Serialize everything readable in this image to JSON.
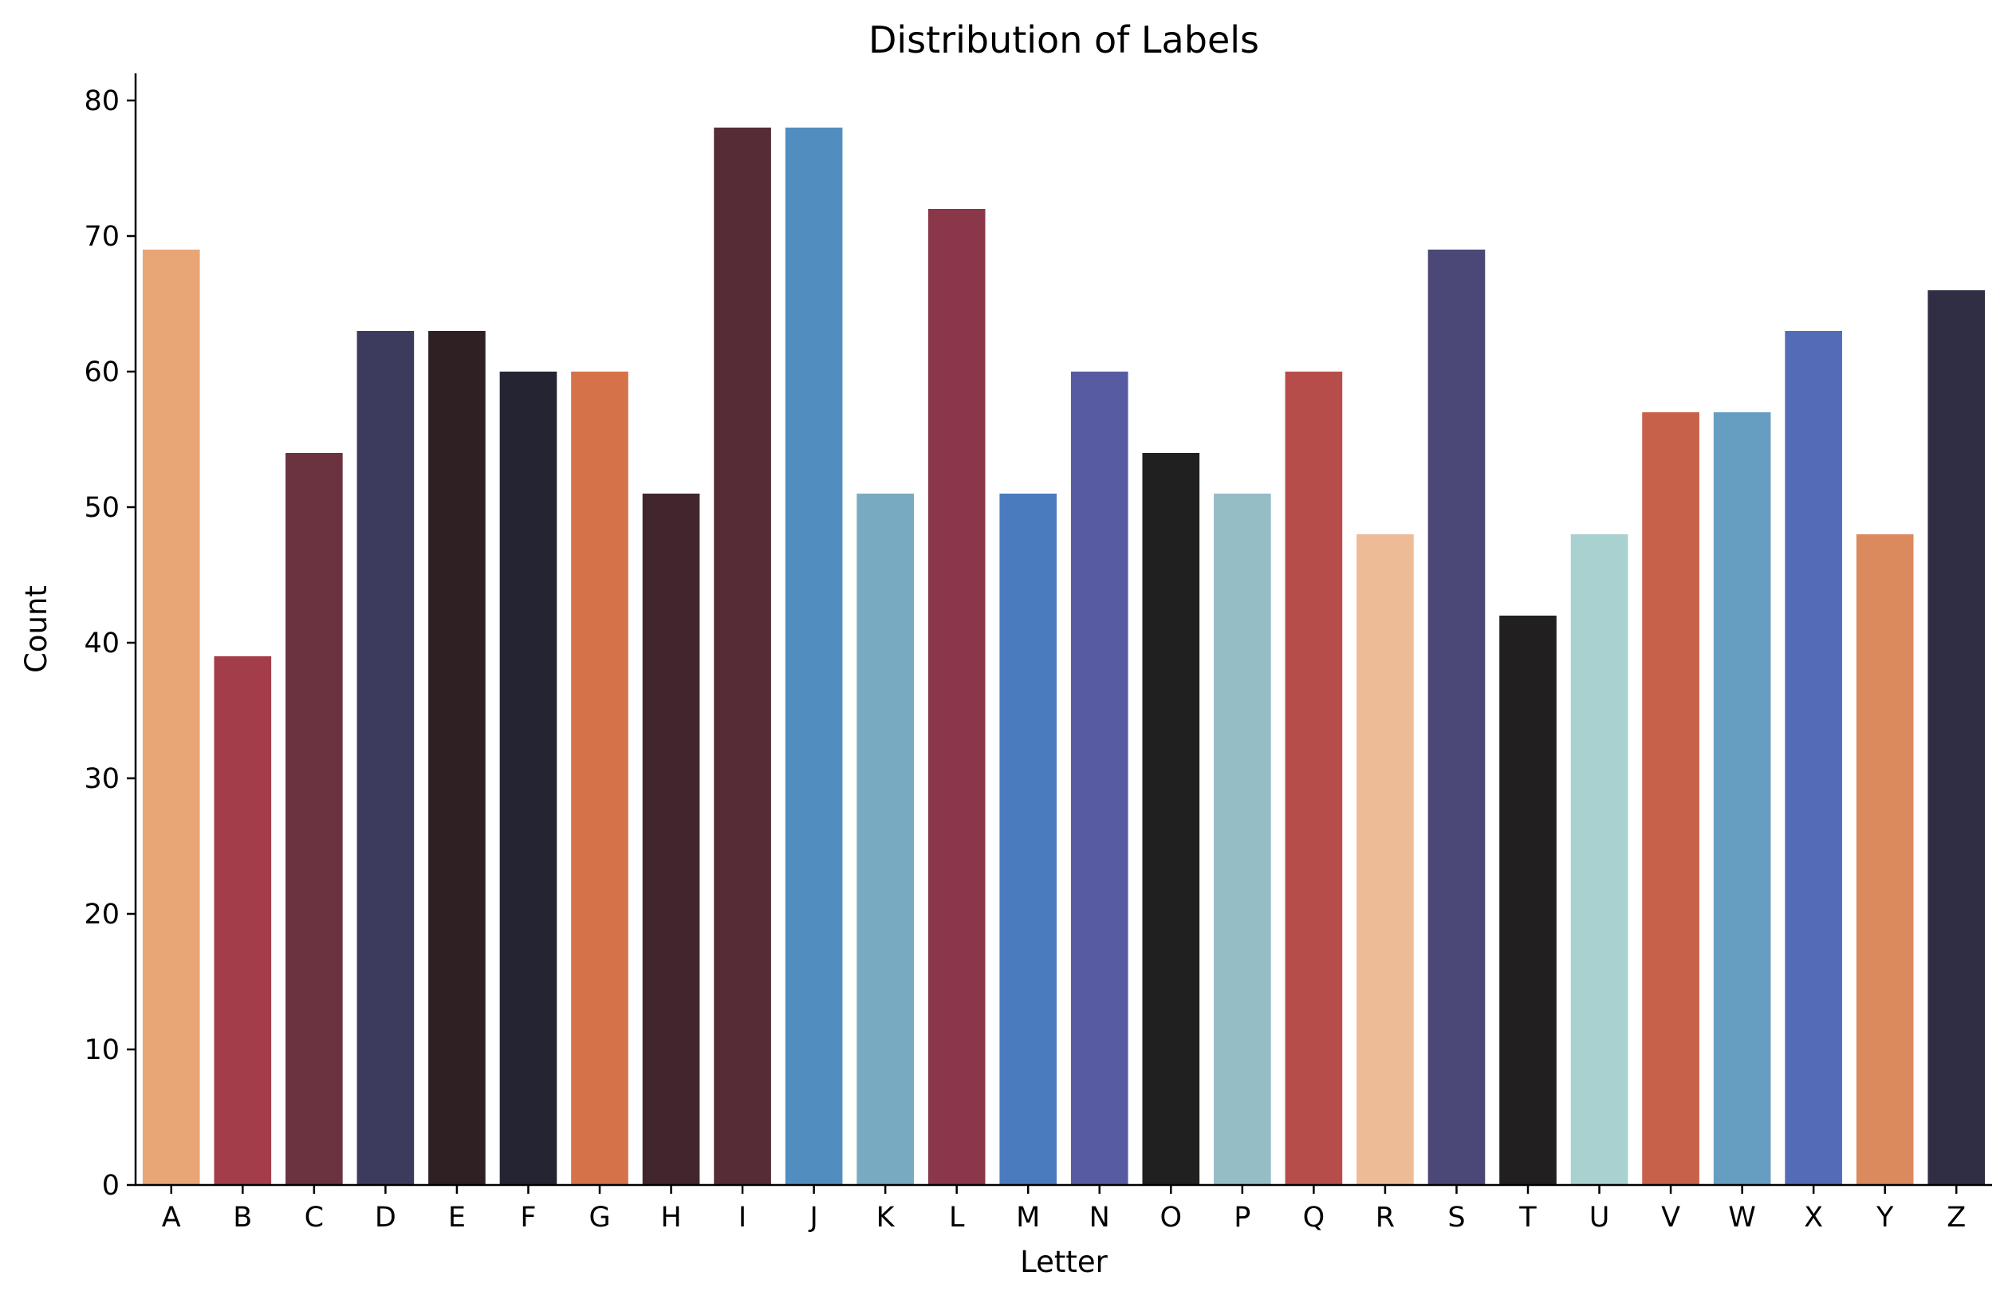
{
  "chart_data": {
    "type": "bar",
    "title": "Distribution of Labels",
    "xlabel": "Letter",
    "ylabel": "Count",
    "ylim": [
      0,
      82
    ],
    "yticks": [
      0,
      10,
      20,
      30,
      40,
      50,
      60,
      70,
      80
    ],
    "grid": false,
    "categories": [
      "A",
      "B",
      "C",
      "D",
      "E",
      "F",
      "G",
      "H",
      "I",
      "J",
      "K",
      "L",
      "M",
      "N",
      "O",
      "P",
      "Q",
      "R",
      "S",
      "T",
      "U",
      "V",
      "W",
      "X",
      "Y",
      "Z"
    ],
    "values": [
      69,
      39,
      54,
      63,
      63,
      60,
      60,
      51,
      78,
      78,
      51,
      72,
      51,
      60,
      54,
      51,
      60,
      48,
      69,
      42,
      48,
      57,
      57,
      63,
      48,
      66
    ],
    "colors": [
      "#e8a676",
      "#a33d4a",
      "#6b323f",
      "#3d3b5d",
      "#2f2024",
      "#252432",
      "#d6724a",
      "#41262d",
      "#562c36",
      "#528dc0",
      "#78abc2",
      "#8a3749",
      "#4a7bbf",
      "#575ca2",
      "#202020",
      "#95bdc6",
      "#b74d4b",
      "#edbc97",
      "#4b4878",
      "#221f20",
      "#a9d1d0",
      "#c76149",
      "#669ec2",
      "#546cb7",
      "#db8a5e",
      "#302e44"
    ]
  }
}
